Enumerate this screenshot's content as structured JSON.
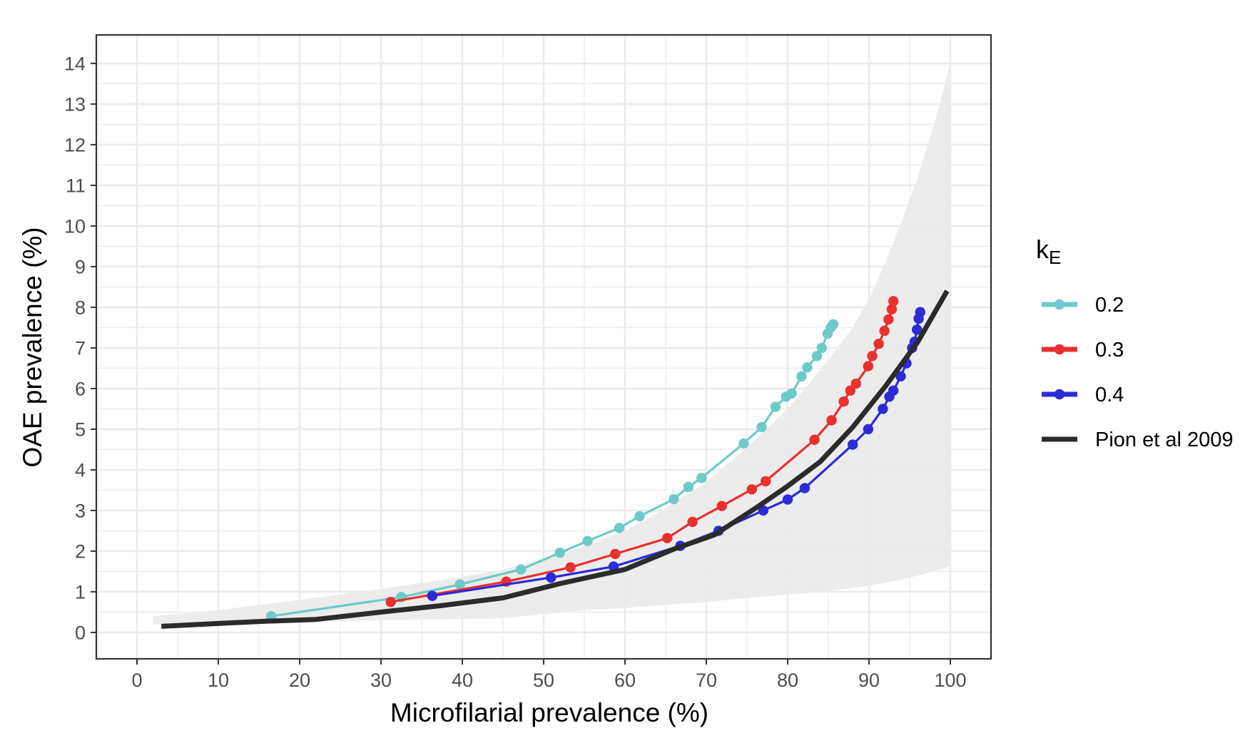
{
  "chart_data": {
    "type": "line",
    "title": "",
    "xlabel": "Microfilarial prevalence (%)",
    "ylabel": "OAE prevalence (%)",
    "xlim": [
      -5,
      105
    ],
    "ylim": [
      -0.65,
      14.7
    ],
    "x_ticks": [
      0,
      10,
      20,
      30,
      40,
      50,
      60,
      70,
      80,
      90,
      100
    ],
    "y_ticks": [
      0,
      1,
      2,
      3,
      4,
      5,
      6,
      7,
      8,
      9,
      10,
      11,
      12,
      13,
      14
    ],
    "grid": true,
    "legend": {
      "title_main": "k",
      "title_sub": "E",
      "placement": "right"
    },
    "series": [
      {
        "name": "0.2",
        "color": "#6ECAC8",
        "markers": true,
        "points": [
          [
            16.5,
            0.4
          ],
          [
            32.5,
            0.87
          ],
          [
            39.7,
            1.18
          ],
          [
            47.2,
            1.55
          ],
          [
            52.0,
            1.96
          ],
          [
            55.4,
            2.25
          ],
          [
            59.3,
            2.57
          ],
          [
            61.8,
            2.86
          ],
          [
            66.0,
            3.28
          ],
          [
            67.8,
            3.58
          ],
          [
            69.4,
            3.8
          ],
          [
            74.6,
            4.65
          ],
          [
            76.8,
            5.05
          ],
          [
            78.5,
            5.55
          ],
          [
            79.8,
            5.8
          ],
          [
            80.5,
            5.88
          ],
          [
            81.7,
            6.3
          ],
          [
            82.4,
            6.52
          ],
          [
            83.6,
            6.8
          ],
          [
            84.2,
            7.0
          ],
          [
            84.9,
            7.35
          ],
          [
            85.3,
            7.5
          ],
          [
            85.6,
            7.58
          ]
        ]
      },
      {
        "name": "0.3",
        "color": "#E8312F",
        "markers": true,
        "points": [
          [
            31.2,
            0.75
          ],
          [
            45.4,
            1.25
          ],
          [
            53.3,
            1.6
          ],
          [
            58.8,
            1.93
          ],
          [
            65.2,
            2.32
          ],
          [
            68.3,
            2.72
          ],
          [
            71.9,
            3.11
          ],
          [
            75.6,
            3.52
          ],
          [
            77.3,
            3.72
          ],
          [
            83.3,
            4.74
          ],
          [
            85.4,
            5.22
          ],
          [
            86.9,
            5.68
          ],
          [
            87.7,
            5.95
          ],
          [
            88.4,
            6.12
          ],
          [
            89.9,
            6.55
          ],
          [
            90.4,
            6.8
          ],
          [
            91.2,
            7.1
          ],
          [
            91.9,
            7.42
          ],
          [
            92.4,
            7.7
          ],
          [
            92.8,
            7.95
          ],
          [
            93.0,
            8.15
          ]
        ]
      },
      {
        "name": "0.4",
        "color": "#2B2BD8",
        "markers": true,
        "points": [
          [
            36.3,
            0.9
          ],
          [
            50.9,
            1.35
          ],
          [
            58.6,
            1.62
          ],
          [
            66.8,
            2.13
          ],
          [
            71.5,
            2.5
          ],
          [
            77.0,
            3.0
          ],
          [
            80.0,
            3.27
          ],
          [
            82.1,
            3.55
          ],
          [
            88.0,
            4.62
          ],
          [
            89.9,
            5.0
          ],
          [
            91.7,
            5.5
          ],
          [
            92.5,
            5.8
          ],
          [
            93.0,
            5.95
          ],
          [
            93.9,
            6.3
          ],
          [
            94.6,
            6.62
          ],
          [
            95.3,
            7.0
          ],
          [
            95.6,
            7.15
          ],
          [
            95.9,
            7.45
          ],
          [
            96.1,
            7.72
          ],
          [
            96.3,
            7.88
          ]
        ]
      },
      {
        "name": "Pion et al 2009",
        "color": "#2B2B2B",
        "markers": false,
        "points": [
          [
            3,
            0.15
          ],
          [
            10,
            0.22
          ],
          [
            15,
            0.27
          ],
          [
            22,
            0.32
          ],
          [
            30,
            0.5
          ],
          [
            37,
            0.65
          ],
          [
            45,
            0.85
          ],
          [
            52,
            1.2
          ],
          [
            60,
            1.55
          ],
          [
            66,
            2.05
          ],
          [
            71,
            2.4
          ],
          [
            76,
            3.05
          ],
          [
            80,
            3.6
          ],
          [
            84,
            4.2
          ],
          [
            88,
            5.05
          ],
          [
            92,
            6.05
          ],
          [
            96,
            7.15
          ],
          [
            99.6,
            8.4
          ]
        ]
      }
    ],
    "band": {
      "color": "#EBEBEB",
      "x": [
        2,
        10,
        20,
        30,
        40,
        45,
        50,
        55,
        60,
        65,
        70,
        75,
        80,
        85,
        88,
        90,
        92,
        94,
        96,
        98,
        100
      ],
      "lower": [
        0.2,
        0.2,
        0.25,
        0.3,
        0.33,
        0.35,
        0.45,
        0.55,
        0.6,
        0.68,
        0.75,
        0.85,
        0.93,
        1.02,
        1.09,
        1.15,
        1.22,
        1.3,
        1.4,
        1.5,
        1.63
      ],
      "upper": [
        0.4,
        0.55,
        0.8,
        1.07,
        1.37,
        1.55,
        1.8,
        2.12,
        2.5,
        3.05,
        3.7,
        4.55,
        5.5,
        6.7,
        7.5,
        8.2,
        9.1,
        10.1,
        11.2,
        12.5,
        14.0
      ]
    }
  }
}
